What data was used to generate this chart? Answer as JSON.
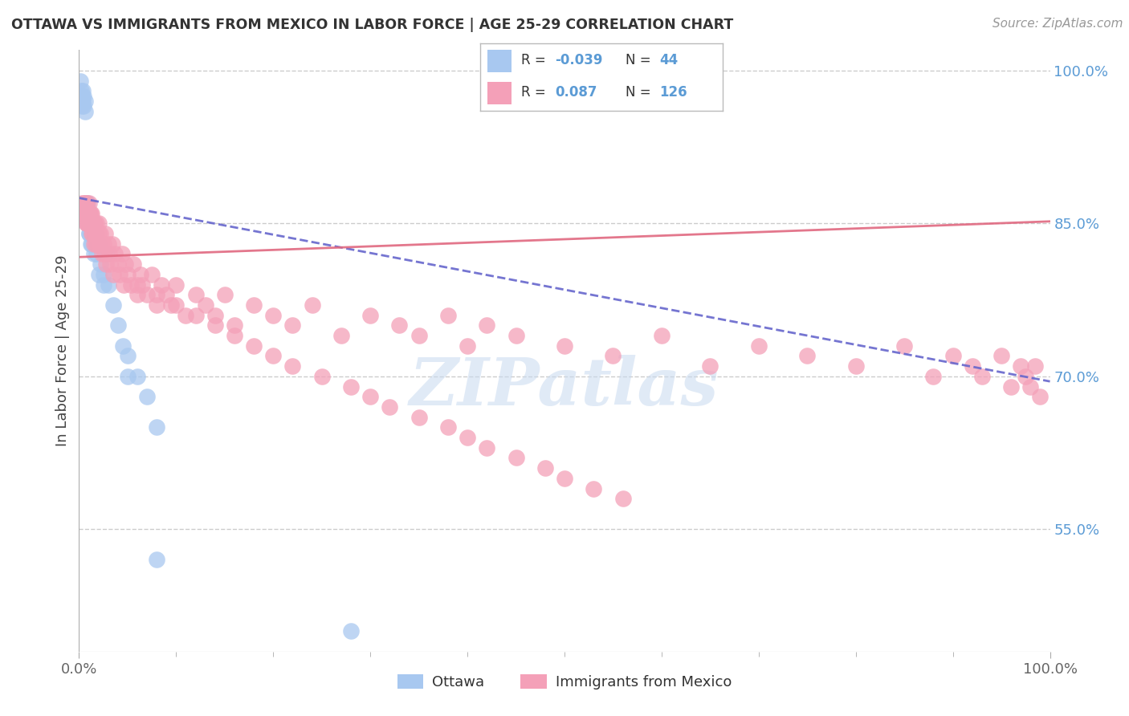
{
  "title": "OTTAWA VS IMMIGRANTS FROM MEXICO IN LABOR FORCE | AGE 25-29 CORRELATION CHART",
  "source": "Source: ZipAtlas.com",
  "ylabel": "In Labor Force | Age 25-29",
  "legend_ottawa": "Ottawa",
  "legend_mexico": "Immigrants from Mexico",
  "ottawa_color": "#a8c8f0",
  "mexico_color": "#f4a0b8",
  "ottawa_line_color": "#6666cc",
  "mexico_line_color": "#e06880",
  "ytick_vals": [
    0.55,
    0.7,
    0.85,
    1.0
  ],
  "ytick_labels": [
    "55.0%",
    "70.0%",
    "85.0%",
    "100.0%"
  ],
  "xlim": [
    0,
    1.0
  ],
  "ylim": [
    0.43,
    1.02
  ],
  "watermark": "ZIPatlas",
  "ottawa_x": [
    0.001,
    0.002,
    0.002,
    0.003,
    0.003,
    0.004,
    0.004,
    0.005,
    0.005,
    0.006,
    0.006,
    0.007,
    0.007,
    0.008,
    0.008,
    0.009,
    0.01,
    0.01,
    0.011,
    0.012,
    0.013,
    0.015,
    0.016,
    0.018,
    0.02,
    0.022,
    0.025,
    0.028,
    0.03,
    0.035,
    0.04,
    0.045,
    0.05,
    0.06,
    0.07,
    0.08,
    0.01,
    0.012,
    0.015,
    0.02,
    0.025,
    0.05,
    0.08,
    0.28
  ],
  "ottawa_y": [
    0.99,
    0.98,
    0.97,
    0.975,
    0.965,
    0.98,
    0.97,
    0.975,
    0.965,
    0.97,
    0.96,
    0.87,
    0.86,
    0.87,
    0.85,
    0.87,
    0.86,
    0.84,
    0.85,
    0.84,
    0.83,
    0.85,
    0.84,
    0.82,
    0.83,
    0.81,
    0.8,
    0.82,
    0.79,
    0.77,
    0.75,
    0.73,
    0.72,
    0.7,
    0.68,
    0.65,
    0.84,
    0.83,
    0.82,
    0.8,
    0.79,
    0.7,
    0.52,
    0.45
  ],
  "mexico_x": [
    0.003,
    0.004,
    0.005,
    0.005,
    0.006,
    0.006,
    0.007,
    0.007,
    0.007,
    0.008,
    0.008,
    0.008,
    0.009,
    0.009,
    0.01,
    0.01,
    0.01,
    0.011,
    0.011,
    0.012,
    0.012,
    0.013,
    0.013,
    0.014,
    0.014,
    0.015,
    0.015,
    0.016,
    0.016,
    0.017,
    0.018,
    0.018,
    0.019,
    0.02,
    0.02,
    0.021,
    0.022,
    0.023,
    0.024,
    0.025,
    0.026,
    0.027,
    0.028,
    0.03,
    0.031,
    0.032,
    0.034,
    0.035,
    0.037,
    0.04,
    0.042,
    0.044,
    0.046,
    0.048,
    0.05,
    0.053,
    0.056,
    0.06,
    0.063,
    0.065,
    0.07,
    0.075,
    0.08,
    0.085,
    0.09,
    0.095,
    0.1,
    0.11,
    0.12,
    0.13,
    0.14,
    0.15,
    0.16,
    0.18,
    0.2,
    0.22,
    0.24,
    0.27,
    0.3,
    0.33,
    0.35,
    0.38,
    0.4,
    0.42,
    0.45,
    0.5,
    0.55,
    0.6,
    0.65,
    0.7,
    0.75,
    0.8,
    0.85,
    0.88,
    0.9,
    0.92,
    0.93,
    0.95,
    0.96,
    0.97,
    0.975,
    0.98,
    0.985,
    0.99,
    0.06,
    0.08,
    0.1,
    0.12,
    0.14,
    0.16,
    0.18,
    0.2,
    0.22,
    0.25,
    0.28,
    0.3,
    0.32,
    0.35,
    0.38,
    0.4,
    0.42,
    0.45,
    0.48,
    0.5,
    0.53,
    0.56
  ],
  "mexico_y": [
    0.87,
    0.86,
    0.87,
    0.86,
    0.87,
    0.86,
    0.87,
    0.85,
    0.86,
    0.87,
    0.86,
    0.85,
    0.86,
    0.85,
    0.87,
    0.86,
    0.85,
    0.86,
    0.85,
    0.86,
    0.85,
    0.86,
    0.84,
    0.85,
    0.84,
    0.85,
    0.83,
    0.85,
    0.84,
    0.83,
    0.85,
    0.84,
    0.83,
    0.85,
    0.84,
    0.83,
    0.84,
    0.83,
    0.82,
    0.83,
    0.82,
    0.84,
    0.81,
    0.83,
    0.82,
    0.81,
    0.83,
    0.8,
    0.82,
    0.81,
    0.8,
    0.82,
    0.79,
    0.81,
    0.8,
    0.79,
    0.81,
    0.78,
    0.8,
    0.79,
    0.78,
    0.8,
    0.77,
    0.79,
    0.78,
    0.77,
    0.79,
    0.76,
    0.78,
    0.77,
    0.76,
    0.78,
    0.75,
    0.77,
    0.76,
    0.75,
    0.77,
    0.74,
    0.76,
    0.75,
    0.74,
    0.76,
    0.73,
    0.75,
    0.74,
    0.73,
    0.72,
    0.74,
    0.71,
    0.73,
    0.72,
    0.71,
    0.73,
    0.7,
    0.72,
    0.71,
    0.7,
    0.72,
    0.69,
    0.71,
    0.7,
    0.69,
    0.71,
    0.68,
    0.79,
    0.78,
    0.77,
    0.76,
    0.75,
    0.74,
    0.73,
    0.72,
    0.71,
    0.7,
    0.69,
    0.68,
    0.67,
    0.66,
    0.65,
    0.64,
    0.63,
    0.62,
    0.61,
    0.6,
    0.59,
    0.58
  ],
  "ottawa_line_x0": 0.0,
  "ottawa_line_y0": 0.875,
  "ottawa_line_x1": 1.0,
  "ottawa_line_y1": 0.695,
  "mexico_line_x0": 0.0,
  "mexico_line_y0": 0.817,
  "mexico_line_x1": 1.0,
  "mexico_line_y1": 0.852
}
